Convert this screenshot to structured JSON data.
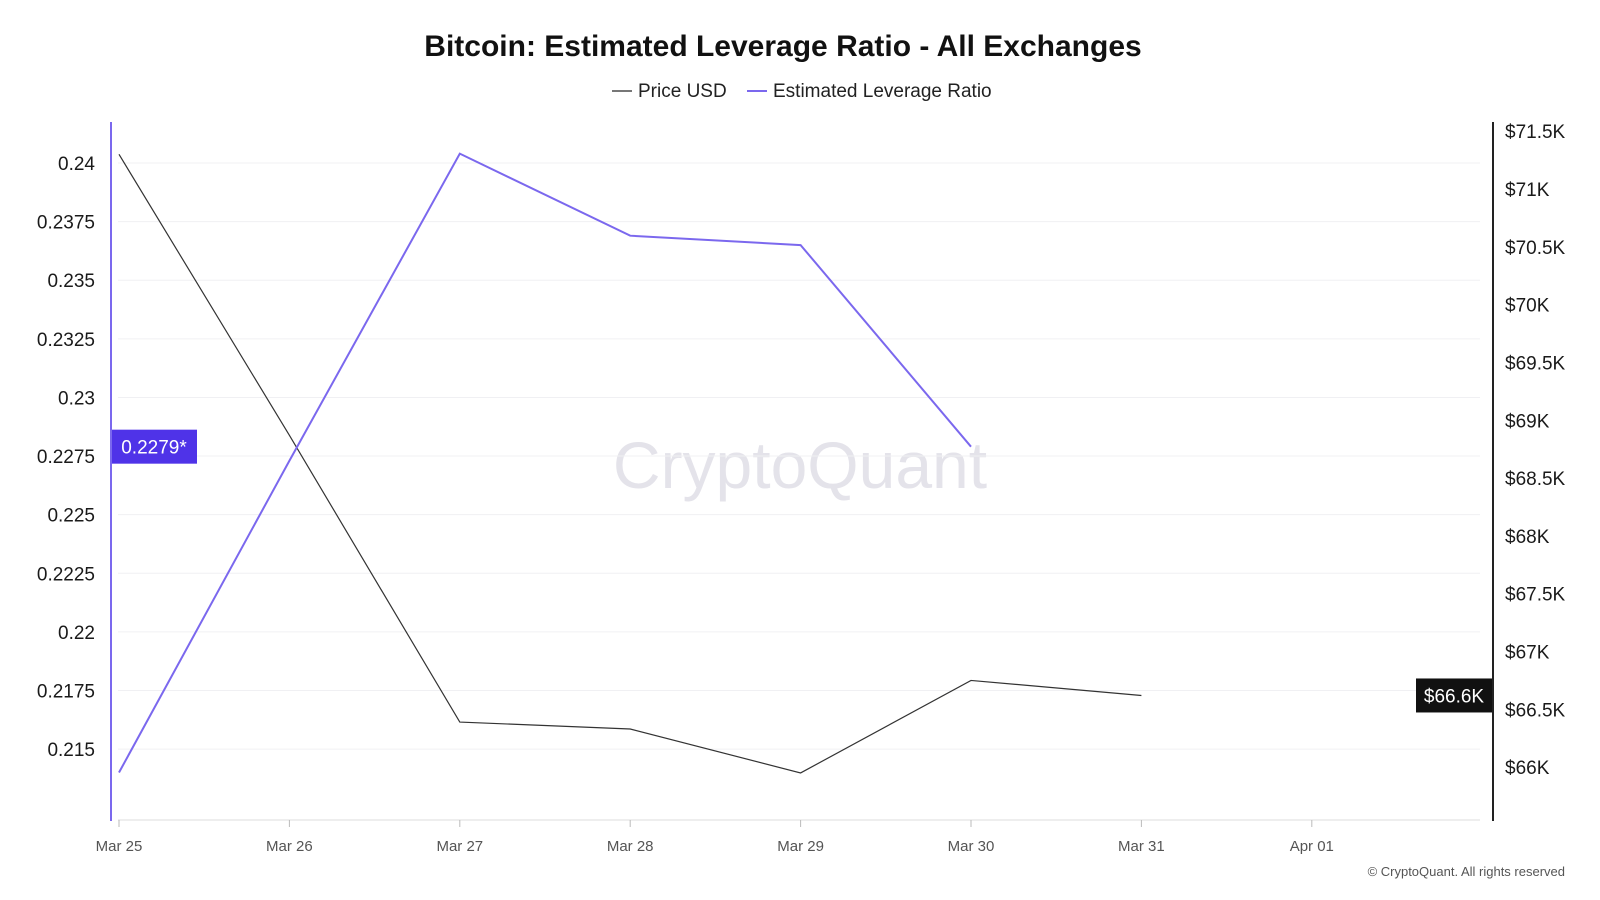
{
  "chart_data": {
    "type": "line",
    "title": "Bitcoin: Estimated Leverage Ratio - All Exchanges",
    "categories": [
      "Mar 25",
      "Mar 26",
      "Mar 27",
      "Mar 28",
      "Mar 29",
      "Mar 30",
      "Mar 31",
      "Apr 01"
    ],
    "series": [
      {
        "name": "Price USD",
        "axis": "right",
        "color": "#333333",
        "values": [
          71300,
          68870,
          66390,
          66330,
          65950,
          66750,
          66620,
          null
        ]
      },
      {
        "name": "Estimated Leverage Ratio",
        "axis": "left",
        "color": "#7b68ee",
        "values": [
          0.214,
          0.2273,
          0.2404,
          0.2369,
          0.2365,
          0.2279,
          null,
          null
        ]
      }
    ],
    "left_axis": {
      "range": [
        0.2127,
        0.24175
      ],
      "ticks": [
        0.24,
        0.2375,
        0.235,
        0.2325,
        0.23,
        0.2275,
        0.225,
        0.2225,
        0.22,
        0.2175,
        0.215
      ],
      "tick_labels": [
        "0.24",
        "0.2375",
        "0.235",
        "0.2325",
        "0.23",
        "0.2275",
        "0.225",
        "0.2225",
        "0.22",
        "0.2175",
        "0.215"
      ],
      "current_label": "0.2279*",
      "current_value": 0.2279,
      "current_color": "#4f33e8"
    },
    "right_axis": {
      "range": [
        65690,
        71580
      ],
      "ticks": [
        71500,
        71000,
        70500,
        70000,
        69500,
        69000,
        68500,
        68000,
        67500,
        67000,
        66500,
        66000
      ],
      "tick_labels": [
        "$71.5K",
        "$71K",
        "$70.5K",
        "$70K",
        "$69.5K",
        "$69K",
        "$68.5K",
        "$68K",
        "$67.5K",
        "$67K",
        "$66.5K",
        "$66K"
      ],
      "current_label": "$66.6K",
      "current_value": 66620,
      "current_color": "#111111"
    },
    "grid": true,
    "legend_position": "top-center"
  },
  "watermark": "CryptoQuant",
  "footer": "© CryptoQuant. All rights reserved"
}
